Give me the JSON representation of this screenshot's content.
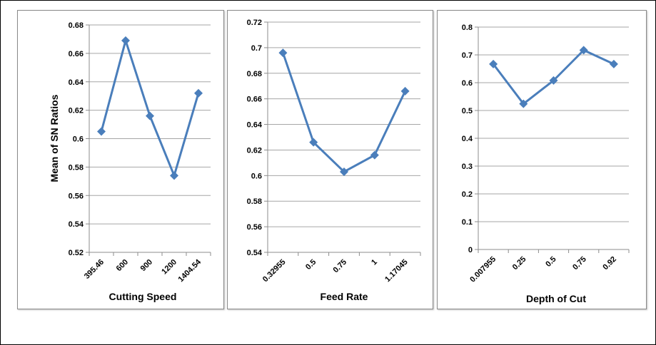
{
  "colors": {
    "series": "#4a7ebb",
    "grid": "#a6a6a6",
    "axis": "#8c8c8c"
  },
  "chart_data": [
    {
      "type": "line",
      "title": "",
      "xlabel": "Cutting Speed",
      "ylabel": "Mean of SN Ratios",
      "categories": [
        "395.46",
        "600",
        "900",
        "1200",
        "1404.54"
      ],
      "values": [
        0.605,
        0.669,
        0.616,
        0.574,
        0.632
      ],
      "ylim": [
        0.52,
        0.68
      ],
      "yticks": [
        "0.52",
        "0.54",
        "0.56",
        "0.58",
        "0.6",
        "0.62",
        "0.64",
        "0.66",
        "0.68"
      ],
      "grid": true
    },
    {
      "type": "line",
      "title": "",
      "xlabel": "Feed Rate",
      "ylabel": "",
      "categories": [
        "0.32955",
        "0.5",
        "0.75",
        "1",
        "1.17045"
      ],
      "values": [
        0.696,
        0.626,
        0.603,
        0.616,
        0.666
      ],
      "ylim": [
        0.54,
        0.72
      ],
      "yticks": [
        "0.54",
        "0.56",
        "0.58",
        "0.6",
        "0.62",
        "0.64",
        "0.66",
        "0.68",
        "0.7",
        "0.72"
      ],
      "grid": true
    },
    {
      "type": "line",
      "title": "",
      "xlabel": "Depth of Cut",
      "ylabel": "",
      "categories": [
        "0.007955",
        "0.25",
        "0.5",
        "0.75",
        "0.92"
      ],
      "values": [
        0.667,
        0.524,
        0.608,
        0.717,
        0.667
      ],
      "ylim": [
        0,
        0.8
      ],
      "yticks": [
        "0",
        "0.1",
        "0.2",
        "0.3",
        "0.4",
        "0.5",
        "0.6",
        "0.7",
        "0.8"
      ],
      "grid": true
    }
  ]
}
